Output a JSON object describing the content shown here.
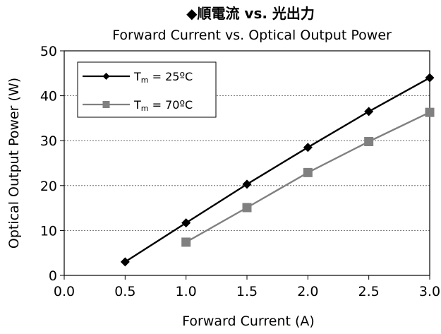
{
  "chart_data": {
    "type": "line",
    "title": "◆順電流 vs. 光出力",
    "subtitle": "Forward Current vs. Optical Output Power",
    "xlabel": "Forward Current (A)",
    "ylabel": "Optical Output Power (W)",
    "xlim": [
      0.0,
      3.0
    ],
    "ylim": [
      0,
      50
    ],
    "xticks": [
      "0.0",
      "0.5",
      "1.0",
      "1.5",
      "2.0",
      "2.5",
      "3.0"
    ],
    "yticks": [
      "0",
      "10",
      "20",
      "30",
      "40",
      "50"
    ],
    "grid": true,
    "legend_position": "top-left",
    "series": [
      {
        "name": "T m = 25ºC",
        "legend_main": "T",
        "legend_sub": "m",
        "legend_rest": " = 25ºC",
        "marker": "diamond",
        "color": "#000000",
        "x": [
          0.5,
          1.0,
          1.5,
          2.0,
          2.5,
          3.0
        ],
        "y": [
          3.0,
          11.7,
          20.3,
          28.5,
          36.5,
          44.0
        ]
      },
      {
        "name": "T m = 70ºC",
        "legend_main": "T",
        "legend_sub": "m",
        "legend_rest": " = 70ºC",
        "marker": "square",
        "color": "#808080",
        "x": [
          1.0,
          1.5,
          2.0,
          2.5,
          3.0
        ],
        "y": [
          7.4,
          15.1,
          22.9,
          29.8,
          36.3
        ]
      }
    ]
  }
}
